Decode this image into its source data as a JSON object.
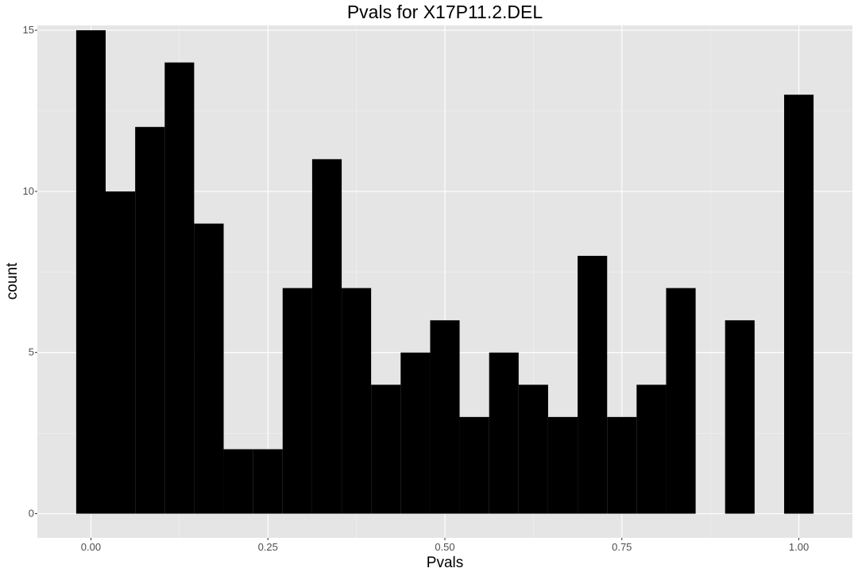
{
  "chart_data": {
    "type": "bar",
    "title": "Pvals for X17P11.2.DEL",
    "xlabel": "Pvals",
    "ylabel": "count",
    "bin_width": 0.0417,
    "bins": [
      {
        "x0": -0.0208,
        "x1": 0.0208,
        "count": 15
      },
      {
        "x0": 0.0208,
        "x1": 0.0625,
        "count": 10
      },
      {
        "x0": 0.0625,
        "x1": 0.1042,
        "count": 12
      },
      {
        "x0": 0.1042,
        "x1": 0.1458,
        "count": 14
      },
      {
        "x0": 0.1458,
        "x1": 0.1875,
        "count": 9
      },
      {
        "x0": 0.1875,
        "x1": 0.2292,
        "count": 2
      },
      {
        "x0": 0.2292,
        "x1": 0.2708,
        "count": 2
      },
      {
        "x0": 0.2708,
        "x1": 0.3125,
        "count": 7
      },
      {
        "x0": 0.3125,
        "x1": 0.3542,
        "count": 11
      },
      {
        "x0": 0.3542,
        "x1": 0.3958,
        "count": 7
      },
      {
        "x0": 0.3958,
        "x1": 0.4375,
        "count": 4
      },
      {
        "x0": 0.4375,
        "x1": 0.4792,
        "count": 5
      },
      {
        "x0": 0.4792,
        "x1": 0.5208,
        "count": 6
      },
      {
        "x0": 0.5208,
        "x1": 0.5625,
        "count": 3
      },
      {
        "x0": 0.5625,
        "x1": 0.6042,
        "count": 5
      },
      {
        "x0": 0.6042,
        "x1": 0.6458,
        "count": 4
      },
      {
        "x0": 0.6458,
        "x1": 0.6875,
        "count": 3
      },
      {
        "x0": 0.6875,
        "x1": 0.7292,
        "count": 8
      },
      {
        "x0": 0.7292,
        "x1": 0.7708,
        "count": 3
      },
      {
        "x0": 0.7708,
        "x1": 0.8125,
        "count": 4
      },
      {
        "x0": 0.8125,
        "x1": 0.8542,
        "count": 7
      },
      {
        "x0": 0.8542,
        "x1": 0.8958,
        "count": 0
      },
      {
        "x0": 0.8958,
        "x1": 0.9375,
        "count": 6
      },
      {
        "x0": 0.9375,
        "x1": 0.9792,
        "count": 0
      },
      {
        "x0": 0.9792,
        "x1": 1.0208,
        "count": 13
      }
    ],
    "xlim": [
      -0.0757,
      1.0757
    ],
    "ylim": [
      -0.75,
      15.15
    ],
    "x_ticks": [
      {
        "value": 0,
        "label": "0.00"
      },
      {
        "value": 0.25,
        "label": "0.25"
      },
      {
        "value": 0.5,
        "label": "0.50"
      },
      {
        "value": 0.75,
        "label": "0.75"
      },
      {
        "value": 1,
        "label": "1.00"
      }
    ],
    "y_ticks": [
      {
        "value": 0,
        "label": "0"
      },
      {
        "value": 5,
        "label": "5"
      },
      {
        "value": 10,
        "label": "10"
      },
      {
        "value": 15,
        "label": "15"
      }
    ],
    "x_minor_ticks": [
      0.125,
      0.375,
      0.625,
      0.875
    ],
    "y_minor_ticks": [
      2.5,
      7.5,
      12.5
    ],
    "grid": true,
    "legend": "none",
    "colors": {
      "panel_background": "#e5e5e5",
      "grid_major": "#ffffff",
      "grid_minor": "#f2f2f2",
      "bar_fill": "#000000",
      "tick_text": "#4d4d4d",
      "tick_mark": "#333333"
    }
  }
}
